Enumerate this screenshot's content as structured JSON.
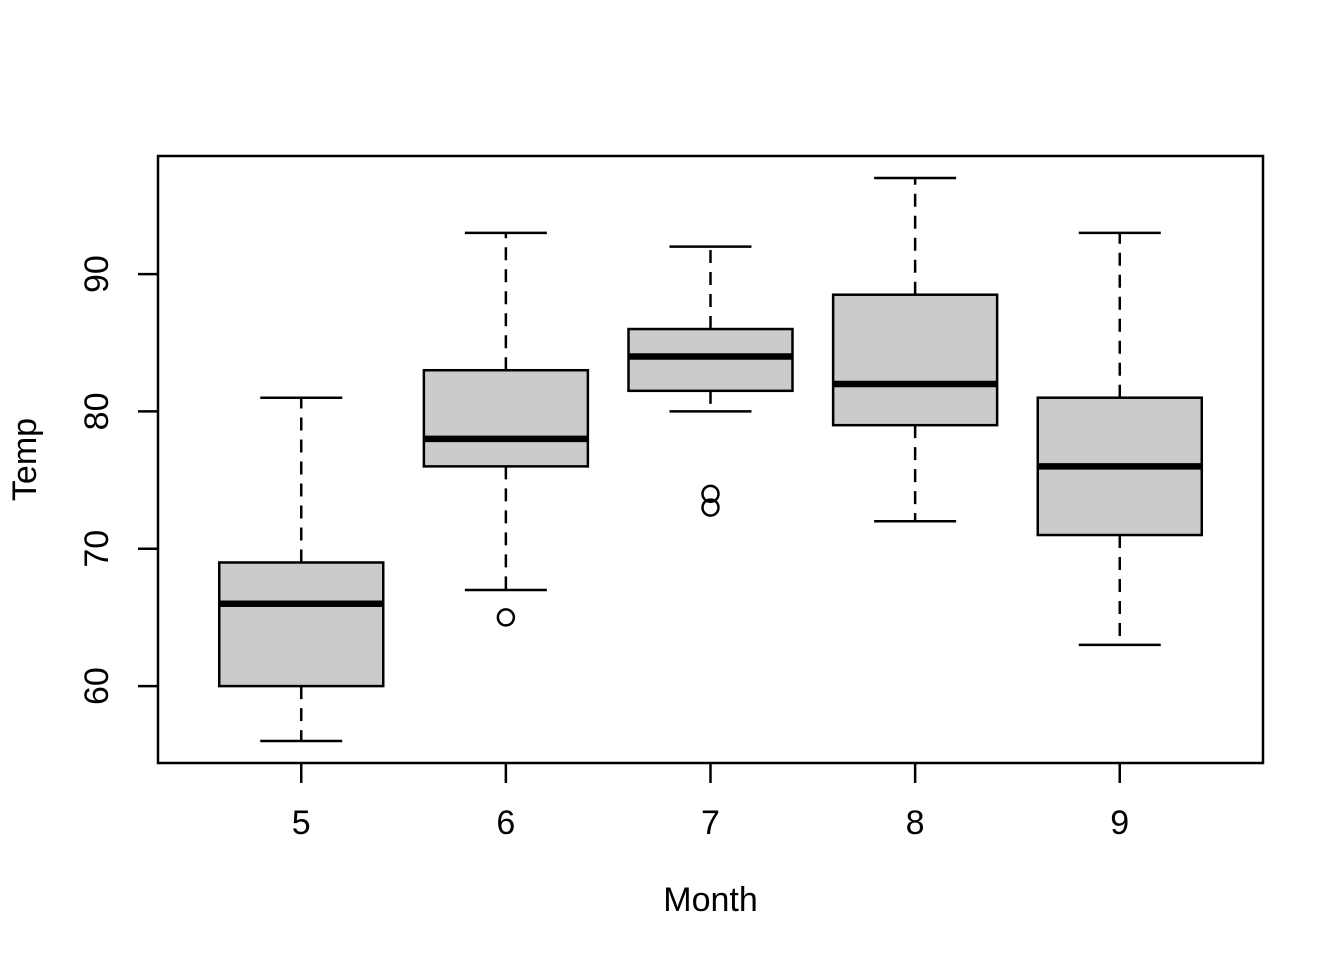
{
  "chart_data": {
    "type": "boxplot",
    "title": "",
    "xlabel": "Month",
    "ylabel": "Temp",
    "categories": [
      "5",
      "6",
      "7",
      "8",
      "9"
    ],
    "y_ticks": [
      60,
      70,
      80,
      90
    ],
    "y_tick_labels": [
      "60",
      "70",
      "80",
      "90"
    ],
    "ylim": [
      54.4,
      98.6
    ],
    "grid": false,
    "legend": false,
    "orientation": "vertical",
    "colors": {
      "box_fill": "#cbcbcb",
      "stroke": "#000000",
      "background": "#ffffff"
    },
    "boxes": [
      {
        "category": "5",
        "whisker_low": 56,
        "q1": 60,
        "median": 66,
        "q3": 69,
        "whisker_high": 81,
        "outliers": []
      },
      {
        "category": "6",
        "whisker_low": 67,
        "q1": 76,
        "median": 78,
        "q3": 83,
        "whisker_high": 93,
        "outliers": [
          65
        ]
      },
      {
        "category": "7",
        "whisker_low": 80,
        "q1": 81.5,
        "median": 84,
        "q3": 86,
        "whisker_high": 92,
        "outliers": [
          73,
          74
        ]
      },
      {
        "category": "8",
        "whisker_low": 72,
        "q1": 79,
        "median": 82,
        "q3": 88.5,
        "whisker_high": 97,
        "outliers": []
      },
      {
        "category": "9",
        "whisker_low": 63,
        "q1": 71,
        "median": 76,
        "q3": 81,
        "whisker_high": 93,
        "outliers": []
      }
    ]
  }
}
